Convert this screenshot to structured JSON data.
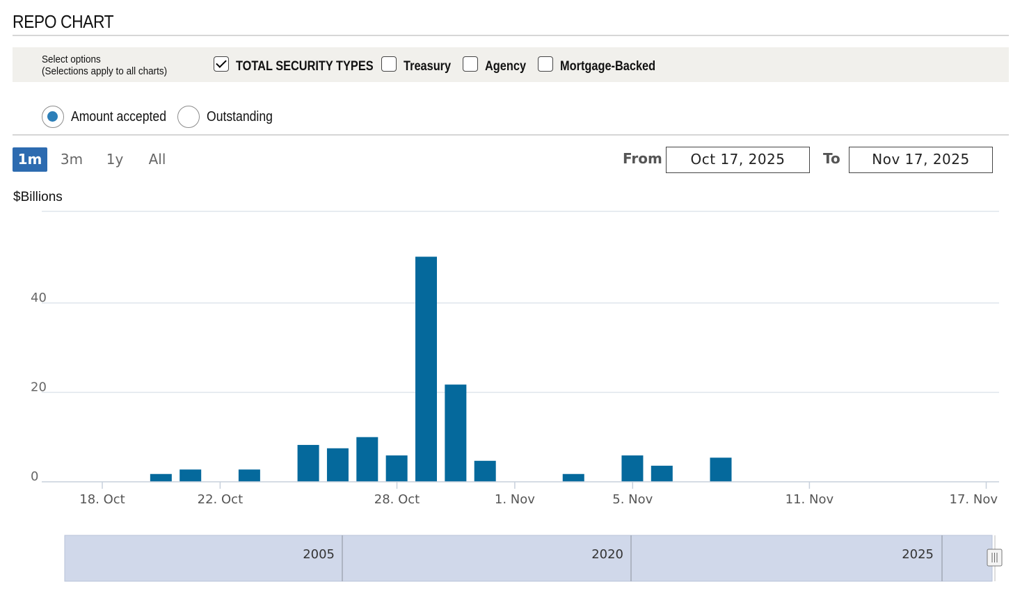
{
  "header": {
    "title": "REPO CHART"
  },
  "options": {
    "label_line1": "Select options",
    "label_line2": "(Selections apply to all charts)",
    "checkboxes": [
      {
        "label": "TOTAL SECURITY TYPES",
        "checked": true
      },
      {
        "label": "Treasury",
        "checked": false
      },
      {
        "label": "Agency",
        "checked": false
      },
      {
        "label": "Mortgage-Backed",
        "checked": false
      }
    ]
  },
  "radios": [
    {
      "label": "Amount accepted",
      "selected": true
    },
    {
      "label": "Outstanding",
      "selected": false
    }
  ],
  "range_buttons": [
    {
      "label": "1m",
      "active": true
    },
    {
      "label": "3m",
      "active": false
    },
    {
      "label": "1y",
      "active": false
    },
    {
      "label": "All",
      "active": false
    }
  ],
  "date_range": {
    "from_label": "From",
    "from_value": "Oct 17, 2025",
    "to_label": "To",
    "to_value": "Nov 17, 2025"
  },
  "colors": {
    "bar": "#05699c",
    "grid": "#dfe5ec",
    "navigator": "#d0d8ea"
  },
  "chart_data": {
    "type": "bar",
    "ylabel": "$Billions",
    "ylim": [
      0,
      60
    ],
    "yticks": [
      0,
      20,
      40
    ],
    "x_start": "2025-10-17",
    "x_end": "2025-11-17",
    "xtick_dates": [
      "2025-10-18",
      "2025-10-22",
      "2025-10-28",
      "2025-11-01",
      "2025-11-05",
      "2025-11-11",
      "2025-11-17"
    ],
    "xtick_labels": [
      "18. Oct",
      "22. Oct",
      "28. Oct",
      "1. Nov",
      "5. Nov",
      "11. Nov",
      "17. Nov"
    ],
    "bars": [
      {
        "date": "2025-10-19",
        "value": 1.75
      },
      {
        "date": "2025-10-20",
        "value": 2.75
      },
      {
        "date": "2025-10-22",
        "value": 2.75
      },
      {
        "date": "2025-10-24",
        "value": 8.25
      },
      {
        "date": "2025-10-25",
        "value": 7.5
      },
      {
        "date": "2025-10-26",
        "value": 10.0
      },
      {
        "date": "2025-10-27",
        "value": 5.9
      },
      {
        "date": "2025-10-28",
        "value": 50.35
      },
      {
        "date": "2025-10-29",
        "value": 21.75
      },
      {
        "date": "2025-10-30",
        "value": 4.7
      },
      {
        "date": "2025-11-02",
        "value": 1.75
      },
      {
        "date": "2025-11-04",
        "value": 5.9
      },
      {
        "date": "2025-11-05",
        "value": 3.6
      },
      {
        "date": "2025-11-07",
        "value": 5.4
      }
    ],
    "navigator_labels": [
      "2005",
      "2020",
      "2025"
    ]
  }
}
